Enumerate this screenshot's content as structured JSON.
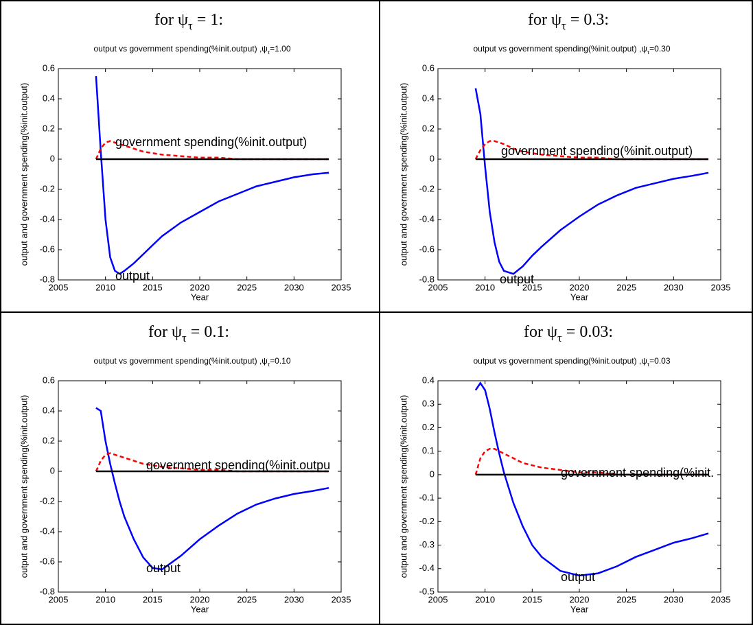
{
  "chart_data": [
    {
      "type": "line",
      "heading": [
        "for ψ",
        "τ",
        " = 1:"
      ],
      "title": [
        "output vs government spending(%init.output) ,ψ",
        "τ",
        "=1.00"
      ],
      "ylabel": "output and government spending(%init.output)",
      "xlabel": "Year",
      "annotations": [
        "output",
        "government spending(%init.output)"
      ],
      "x": [
        2009,
        2009.5,
        2010,
        2010.5,
        2011,
        2011.5,
        2012,
        2013,
        2014,
        2015,
        2016,
        2018,
        2020,
        2022,
        2024,
        2026,
        2028,
        2030,
        2032,
        2033.7
      ],
      "series": [
        {
          "color": "#0000ff",
          "values": [
            0.55,
            0.05,
            -0.4,
            -0.65,
            -0.74,
            -0.76,
            -0.74,
            -0.69,
            -0.63,
            -0.57,
            -0.51,
            -0.42,
            -0.35,
            -0.28,
            -0.23,
            -0.18,
            -0.15,
            -0.12,
            -0.1,
            -0.09
          ]
        },
        {
          "color": "#ff0000",
          "dashed": true,
          "values": [
            0,
            0.07,
            0.11,
            0.12,
            0.11,
            0.1,
            0.09,
            0.07,
            0.05,
            0.04,
            0.03,
            0.02,
            0.01,
            0.01,
            0,
            0,
            0,
            0,
            0,
            0
          ]
        },
        {
          "color": "#000000",
          "values": [
            0,
            0,
            0,
            0,
            0,
            0,
            0,
            0,
            0,
            0,
            0,
            0,
            0,
            0,
            0,
            0,
            0,
            0,
            0,
            0
          ]
        }
      ],
      "xlim": [
        2005,
        2035
      ],
      "xticks": [
        2005,
        2010,
        2015,
        2020,
        2025,
        2030,
        2035
      ],
      "ylim": [
        -0.8,
        0.6
      ],
      "yticks": [
        -0.8,
        -0.6,
        -0.4,
        -0.2,
        0,
        0.2,
        0.4,
        0.6
      ]
    },
    {
      "type": "line",
      "heading": [
        "for ψ",
        "τ",
        " = 0.3:"
      ],
      "title": [
        "output vs government spending(%init.output) ,ψ",
        "τ",
        "=0.30"
      ],
      "ylabel": "output and government spending(%init.output)",
      "xlabel": "Year",
      "annotations": [
        "output",
        "government spending(%init.output)"
      ],
      "x": [
        2009,
        2009.5,
        2010,
        2010.5,
        2011,
        2011.5,
        2012,
        2013,
        2014,
        2015,
        2016,
        2018,
        2020,
        2022,
        2024,
        2026,
        2028,
        2030,
        2032,
        2033.7
      ],
      "series": [
        {
          "color": "#0000ff",
          "values": [
            0.47,
            0.3,
            -0.05,
            -0.35,
            -0.55,
            -0.68,
            -0.74,
            -0.76,
            -0.71,
            -0.64,
            -0.58,
            -0.47,
            -0.38,
            -0.3,
            -0.24,
            -0.19,
            -0.16,
            -0.13,
            -0.11,
            -0.09
          ]
        },
        {
          "color": "#ff0000",
          "dashed": true,
          "values": [
            0,
            0.06,
            0.1,
            0.12,
            0.12,
            0.11,
            0.1,
            0.07,
            0.05,
            0.04,
            0.03,
            0.02,
            0.01,
            0.01,
            0,
            0,
            0,
            0,
            0,
            0
          ]
        },
        {
          "color": "#000000",
          "values": [
            0,
            0,
            0,
            0,
            0,
            0,
            0,
            0,
            0,
            0,
            0,
            0,
            0,
            0,
            0,
            0,
            0,
            0,
            0,
            0
          ]
        }
      ],
      "xlim": [
        2005,
        2035
      ],
      "xticks": [
        2005,
        2010,
        2015,
        2020,
        2025,
        2030,
        2035
      ],
      "ylim": [
        -0.8,
        0.6
      ],
      "yticks": [
        -0.8,
        -0.6,
        -0.4,
        -0.2,
        0,
        0.2,
        0.4,
        0.6
      ]
    },
    {
      "type": "line",
      "heading": [
        "for ψ",
        "τ",
        " = 0.1:"
      ],
      "title": [
        "output vs government spending(%init.output) ,ψ",
        "τ",
        "=0.10"
      ],
      "ylabel": "output and government spending(%init.output)",
      "xlabel": "Year",
      "annotations": [
        "output",
        "government spending(%init.outpu"
      ],
      "x": [
        2009,
        2009.5,
        2010,
        2010.5,
        2011,
        2011.5,
        2012,
        2013,
        2014,
        2015,
        2016,
        2018,
        2020,
        2022,
        2024,
        2026,
        2028,
        2030,
        2032,
        2033.7
      ],
      "series": [
        {
          "color": "#0000ff",
          "values": [
            0.42,
            0.4,
            0.2,
            0.05,
            -0.08,
            -0.2,
            -0.3,
            -0.45,
            -0.57,
            -0.64,
            -0.65,
            -0.56,
            -0.45,
            -0.36,
            -0.28,
            -0.22,
            -0.18,
            -0.15,
            -0.13,
            -0.11
          ]
        },
        {
          "color": "#ff0000",
          "dashed": true,
          "values": [
            0,
            0.07,
            0.11,
            0.12,
            0.11,
            0.1,
            0.09,
            0.07,
            0.05,
            0.04,
            0.03,
            0.02,
            0.01,
            0.01,
            0,
            0,
            0,
            0,
            0,
            0
          ]
        },
        {
          "color": "#000000",
          "values": [
            0,
            0,
            0,
            0,
            0,
            0,
            0,
            0,
            0,
            0,
            0,
            0,
            0,
            0,
            0,
            0,
            0,
            0,
            0,
            0
          ]
        }
      ],
      "xlim": [
        2005,
        2035
      ],
      "xticks": [
        2005,
        2010,
        2015,
        2020,
        2025,
        2030,
        2035
      ],
      "ylim": [
        -0.8,
        0.6
      ],
      "yticks": [
        -0.8,
        -0.6,
        -0.4,
        -0.2,
        0,
        0.2,
        0.4,
        0.6
      ]
    },
    {
      "type": "line",
      "heading": [
        "for ψ",
        "τ",
        " = 0.03:"
      ],
      "title": [
        "output vs government spending(%init.output) ,ψ",
        "τ",
        "=0.03"
      ],
      "ylabel": "output and government spending(%init.output)",
      "xlabel": "Year",
      "annotations": [
        "output",
        "government spending(%init."
      ],
      "x": [
        2009,
        2009.5,
        2010,
        2010.5,
        2011,
        2011.5,
        2012,
        2013,
        2014,
        2015,
        2016,
        2018,
        2020,
        2022,
        2024,
        2026,
        2028,
        2030,
        2032,
        2033.7
      ],
      "series": [
        {
          "color": "#0000ff",
          "values": [
            0.36,
            0.39,
            0.36,
            0.28,
            0.18,
            0.09,
            0.01,
            -0.12,
            -0.22,
            -0.3,
            -0.35,
            -0.41,
            -0.43,
            -0.42,
            -0.39,
            -0.35,
            -0.32,
            -0.29,
            -0.27,
            -0.25
          ]
        },
        {
          "color": "#ff0000",
          "dashed": true,
          "values": [
            0,
            0.07,
            0.1,
            0.11,
            0.11,
            0.1,
            0.09,
            0.07,
            0.05,
            0.04,
            0.03,
            0.02,
            0.01,
            0.01,
            0,
            0,
            0,
            0,
            0,
            0
          ]
        },
        {
          "color": "#000000",
          "values": [
            0,
            0,
            0,
            0,
            0,
            0,
            0,
            0,
            0,
            0,
            0,
            0,
            0,
            0,
            0,
            0,
            0,
            0,
            0,
            0
          ]
        }
      ],
      "xlim": [
        2005,
        2035
      ],
      "xticks": [
        2005,
        2010,
        2015,
        2020,
        2025,
        2030,
        2035
      ],
      "ylim": [
        -0.5,
        0.4
      ],
      "yticks": [
        -0.5,
        -0.4,
        -0.3,
        -0.2,
        -0.1,
        0,
        0.1,
        0.2,
        0.3,
        0.4
      ]
    }
  ]
}
